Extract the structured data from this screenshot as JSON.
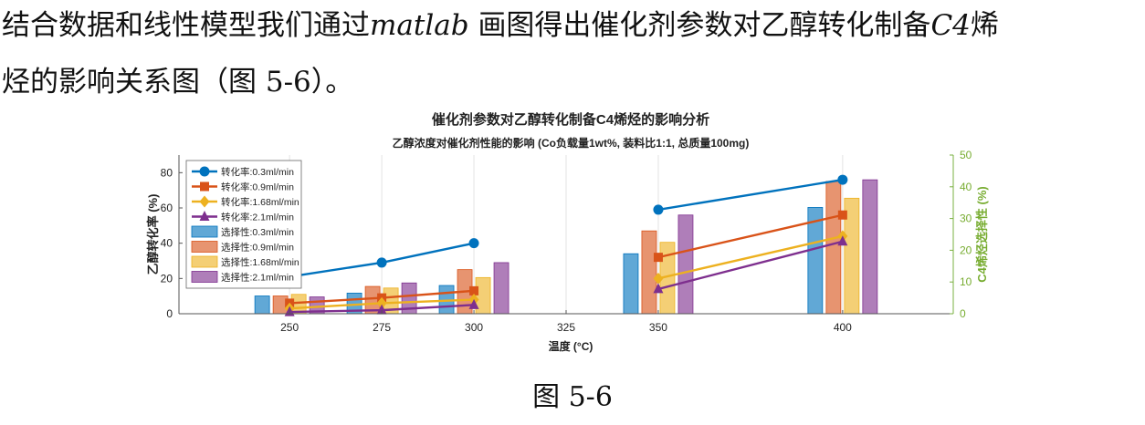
{
  "document": {
    "paragraph": {
      "line1_a": "结合数据和线性模型我们通过",
      "line1_italic_1": "matlab",
      "line1_b": "画图得出催化剂参数对乙醇转化制备",
      "line1_italic_2": "C4",
      "line1_c": "烯",
      "line2": "烃的影响关系图（图 5-6）。"
    },
    "caption": "图 5-6"
  },
  "chart_data": {
    "type": "bar",
    "title": "催化剂参数对乙醇转化制备C4烯烃的影响分析",
    "subtitle": "乙醇浓度对催化剂性能的影响 (Co负载量1wt%, 装料比1:1, 总质量100mg)",
    "xlabel": "温度 (°C)",
    "ylabel": "乙醇转化率 (%)",
    "y2label": "C4烯烃选择性 (%)",
    "xlim": [
      220,
      430
    ],
    "ylim": [
      0,
      90
    ],
    "y2lim": [
      0,
      50
    ],
    "xticks": [
      "250",
      "275",
      "300",
      "325",
      "350",
      "400"
    ],
    "yticks": [
      "0",
      "20",
      "40",
      "60",
      "80"
    ],
    "y2ticks": [
      "0",
      "10",
      "20",
      "30",
      "40",
      "50"
    ],
    "grid": "x",
    "legend_position": "top-left",
    "lines": [
      {
        "name": "转化率:0.3ml/min",
        "color": "#0072BD",
        "marker": "circle",
        "points": [
          [
            250,
            21
          ],
          [
            275,
            29
          ],
          [
            300,
            40
          ],
          [
            350,
            59
          ],
          [
            400,
            76
          ]
        ]
      },
      {
        "name": "转化率:0.9ml/min",
        "color": "#D95319",
        "marker": "square",
        "points": [
          [
            250,
            6
          ],
          [
            275,
            9
          ],
          [
            300,
            13
          ],
          [
            350,
            32
          ],
          [
            400,
            56
          ]
        ]
      },
      {
        "name": "转化率:1.68ml/min",
        "color": "#EDB120",
        "marker": "diamond",
        "points": [
          [
            250,
            3
          ],
          [
            275,
            6
          ],
          [
            300,
            8
          ],
          [
            350,
            20
          ],
          [
            400,
            44
          ]
        ]
      },
      {
        "name": "转化率:2.1ml/min",
        "color": "#7E2F8E",
        "marker": "triangle",
        "points": [
          [
            250,
            1
          ],
          [
            275,
            2
          ],
          [
            300,
            5
          ],
          [
            350,
            14
          ],
          [
            400,
            41
          ]
        ]
      }
    ],
    "bars": [
      {
        "name": "选择性:0.3ml/min",
        "color": "#0072BD",
        "values": [
          [
            250,
            5.6
          ],
          [
            275,
            6.5
          ],
          [
            300,
            8.9
          ],
          [
            350,
            18.9
          ],
          [
            400,
            33.5
          ]
        ]
      },
      {
        "name": "选择性:0.9ml/min",
        "color": "#D95319",
        "values": [
          [
            250,
            5.6
          ],
          [
            275,
            8.6
          ],
          [
            300,
            13.9
          ],
          [
            350,
            26.1
          ],
          [
            400,
            41.7
          ]
        ]
      },
      {
        "name": "选择性:1.68ml/min",
        "color": "#EDB120",
        "values": [
          [
            250,
            6.1
          ],
          [
            275,
            8.1
          ],
          [
            300,
            11.4
          ],
          [
            350,
            22.5
          ],
          [
            400,
            36.4
          ]
        ]
      },
      {
        "name": "选择性:2.1ml/min",
        "color": "#7E2F8E",
        "values": [
          [
            250,
            5.3
          ],
          [
            275,
            9.7
          ],
          [
            300,
            16.1
          ],
          [
            350,
            31.1
          ],
          [
            400,
            42.2
          ]
        ]
      }
    ]
  }
}
